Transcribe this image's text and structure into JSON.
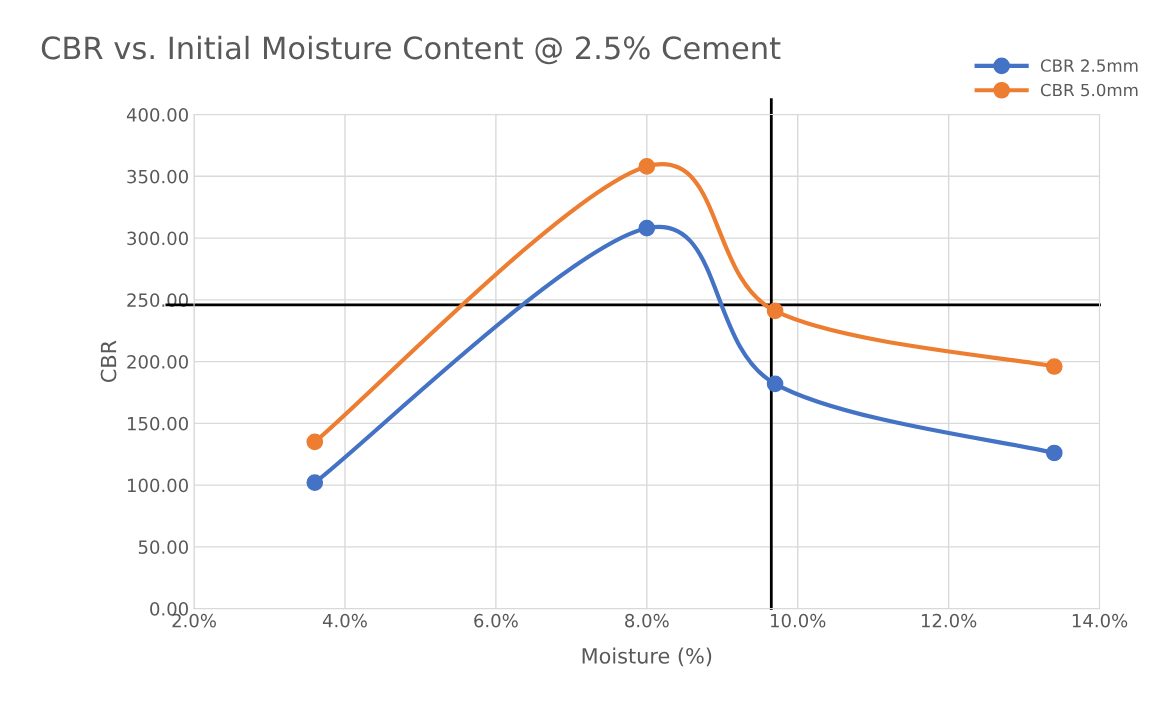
{
  "chart_data": {
    "type": "line",
    "title": "CBR vs. Initial Moisture Content @ 2.5% Cement",
    "xlabel": "Moisture (%)",
    "ylabel": "CBR",
    "x": [
      3.6,
      8.0,
      9.7,
      13.4
    ],
    "series": [
      {
        "name": "CBR 2.5mm",
        "color": "#4472c4",
        "values": [
          102,
          308,
          182,
          126
        ]
      },
      {
        "name": "CBR 5.0mm",
        "color": "#ed7d31",
        "values": [
          135,
          358,
          241,
          196
        ]
      }
    ],
    "xlim": [
      2,
      14
    ],
    "xticks": [
      {
        "value": 2,
        "label": "2.0%"
      },
      {
        "value": 4,
        "label": "4.0%"
      },
      {
        "value": 6,
        "label": "6.0%"
      },
      {
        "value": 8,
        "label": "8.0%"
      },
      {
        "value": 10,
        "label": "10.0%"
      },
      {
        "value": 12,
        "label": "12.0%"
      },
      {
        "value": 14,
        "label": "14.0%"
      }
    ],
    "ylim": [
      0,
      400
    ],
    "yticks": [
      {
        "value": 0,
        "label": "0.00"
      },
      {
        "value": 50,
        "label": "50.00"
      },
      {
        "value": 100,
        "label": "100.00"
      },
      {
        "value": 150,
        "label": "150.00"
      },
      {
        "value": 200,
        "label": "200.00"
      },
      {
        "value": 250,
        "label": "250.00"
      },
      {
        "value": 300,
        "label": "300.00"
      },
      {
        "value": 350,
        "label": "350.00"
      },
      {
        "value": 400,
        "label": "400.00"
      }
    ],
    "ref_lines": [
      {
        "axis": "y",
        "value": 246,
        "color": "#000000"
      },
      {
        "axis": "x",
        "value": 9.65,
        "color": "#000000"
      }
    ],
    "grid": true,
    "legend": "top right",
    "marker": "circle",
    "line_style": "solid"
  }
}
